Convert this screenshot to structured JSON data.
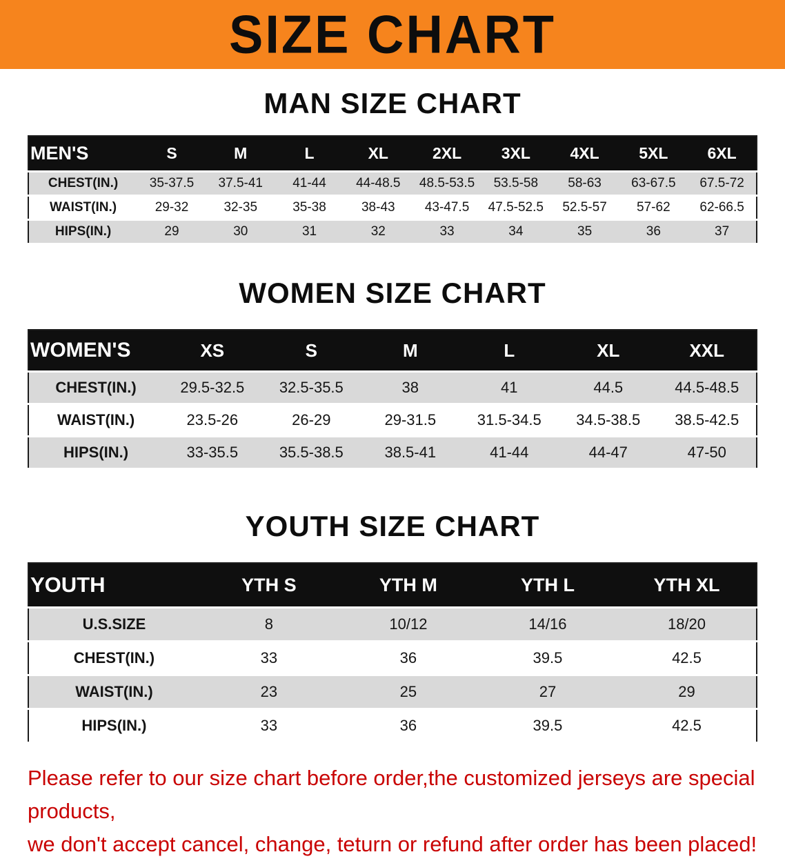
{
  "banner": {
    "title": "SIZE CHART"
  },
  "sections": {
    "men_heading": "MAN SIZE CHART",
    "women_heading": "WOMEN SIZE CHART",
    "youth_heading": "YOUTH SIZE CHART"
  },
  "tables": {
    "men": {
      "header": [
        "MEN'S",
        "S",
        "M",
        "L",
        "XL",
        "2XL",
        "3XL",
        "4XL",
        "5XL",
        "6XL"
      ],
      "rows": [
        [
          "CHEST(IN.)",
          "35-37.5",
          "37.5-41",
          "41-44",
          "44-48.5",
          "48.5-53.5",
          "53.5-58",
          "58-63",
          "63-67.5",
          "67.5-72"
        ],
        [
          "WAIST(IN.)",
          "29-32",
          "32-35",
          "35-38",
          "38-43",
          "43-47.5",
          "47.5-52.5",
          "52.5-57",
          "57-62",
          "62-66.5"
        ],
        [
          "HIPS(IN.)",
          "29",
          "30",
          "31",
          "32",
          "33",
          "34",
          "35",
          "36",
          "37"
        ]
      ]
    },
    "women": {
      "header": [
        "WOMEN'S",
        "XS",
        "S",
        "M",
        "L",
        "XL",
        "XXL"
      ],
      "rows": [
        [
          "CHEST(IN.)",
          "29.5-32.5",
          "32.5-35.5",
          "38",
          "41",
          "44.5",
          "44.5-48.5"
        ],
        [
          "WAIST(IN.)",
          "23.5-26",
          "26-29",
          "29-31.5",
          "31.5-34.5",
          "34.5-38.5",
          "38.5-42.5"
        ],
        [
          "HIPS(IN.)",
          "33-35.5",
          "35.5-38.5",
          "38.5-41",
          "41-44",
          "44-47",
          "47-50"
        ]
      ]
    },
    "youth": {
      "header": [
        "YOUTH",
        "YTH S",
        "YTH M",
        "YTH L",
        "YTH XL"
      ],
      "rows": [
        [
          "U.S.SIZE",
          "8",
          "10/12",
          "14/16",
          "18/20"
        ],
        [
          "CHEST(IN.)",
          "33",
          "36",
          "39.5",
          "42.5"
        ],
        [
          "WAIST(IN.)",
          "23",
          "25",
          "27",
          "29"
        ],
        [
          "HIPS(IN.)",
          "33",
          "36",
          "39.5",
          "42.5"
        ]
      ]
    }
  },
  "footer": {
    "line1": "Please refer to our size chart before order,the customized jerseys are special products,",
    "line2": "we don't accept cancel, change, teturn or refund after order has been placed!"
  },
  "colors": {
    "banner_bg": "#f6841d",
    "table_header_bg": "#0f0f0f",
    "row_alt_bg": "#d9d9d9",
    "footer_text": "#c90303"
  }
}
